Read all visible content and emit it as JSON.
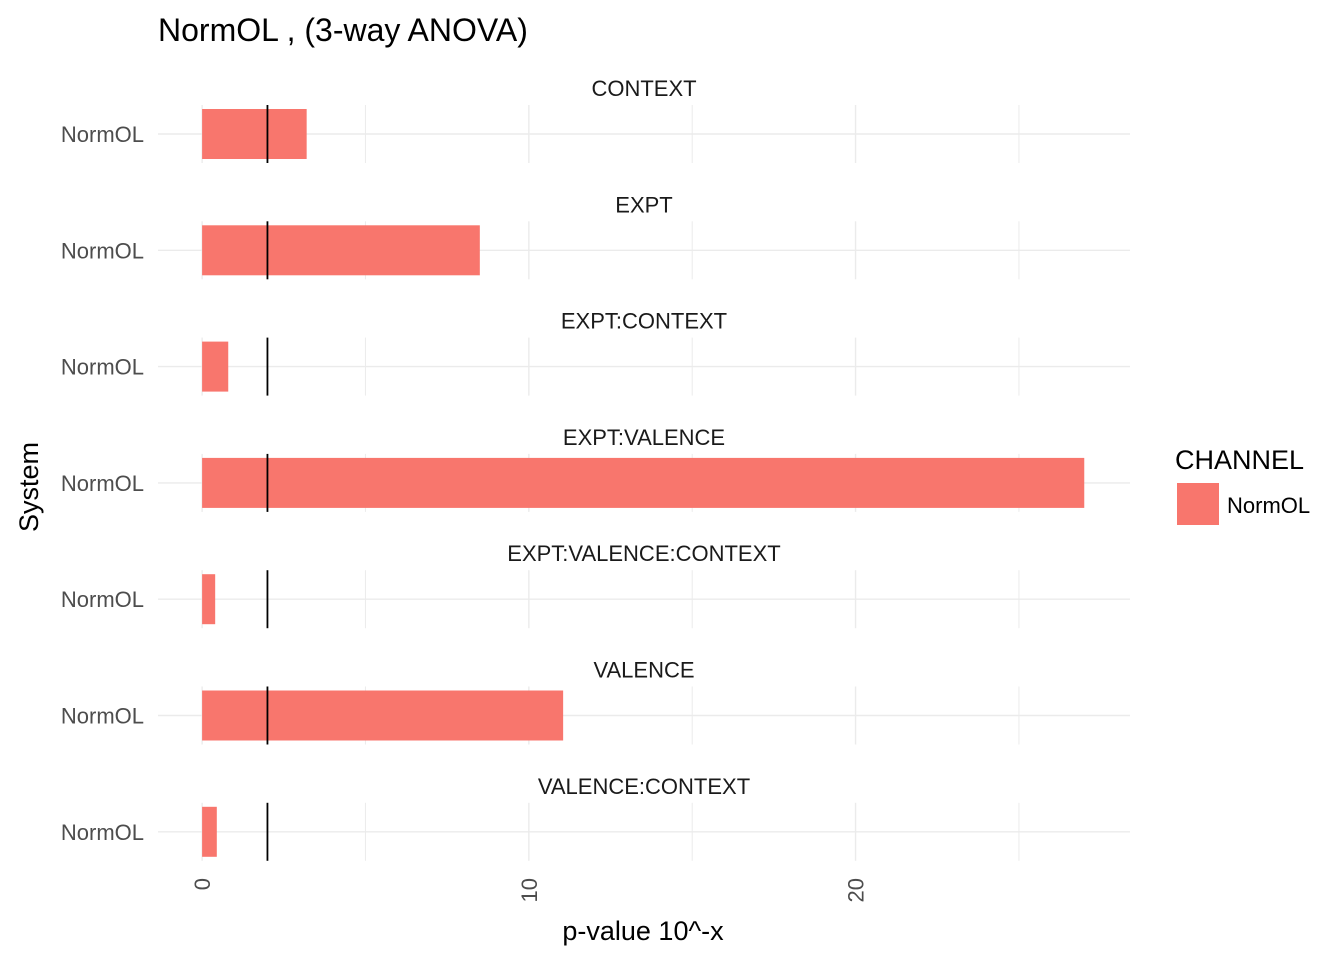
{
  "chart_data": {
    "type": "bar",
    "orientation": "horizontal",
    "title": "NormOL , (3-way ANOVA)",
    "xlabel": "p-value 10^-x",
    "ylabel": "System",
    "panels": [
      {
        "name": "CONTEXT",
        "category": "NormOL",
        "value": 3.2
      },
      {
        "name": "EXPT",
        "category": "NormOL",
        "value": 8.5
      },
      {
        "name": "EXPT:CONTEXT",
        "category": "NormOL",
        "value": 0.8
      },
      {
        "name": "EXPT:VALENCE",
        "category": "NormOL",
        "value": 27.0
      },
      {
        "name": "EXPT:VALENCE:CONTEXT",
        "category": "NormOL",
        "value": 0.4
      },
      {
        "name": "VALENCE",
        "category": "NormOL",
        "value": 11.05
      },
      {
        "name": "VALENCE:CONTEXT",
        "category": "NormOL",
        "value": 0.45
      }
    ],
    "reference_line": 2.0,
    "xlim": [
      -1.35,
      28.4
    ],
    "xticks": [
      0,
      10,
      20
    ],
    "grid": true,
    "legend": {
      "title": "CHANNEL",
      "entries": [
        {
          "label": "NormOL",
          "color": "#F8766D"
        }
      ],
      "position": "right"
    },
    "colors": {
      "bar": "#F8766D",
      "reference_line": "#000000",
      "grid": "#ebebeb"
    }
  }
}
